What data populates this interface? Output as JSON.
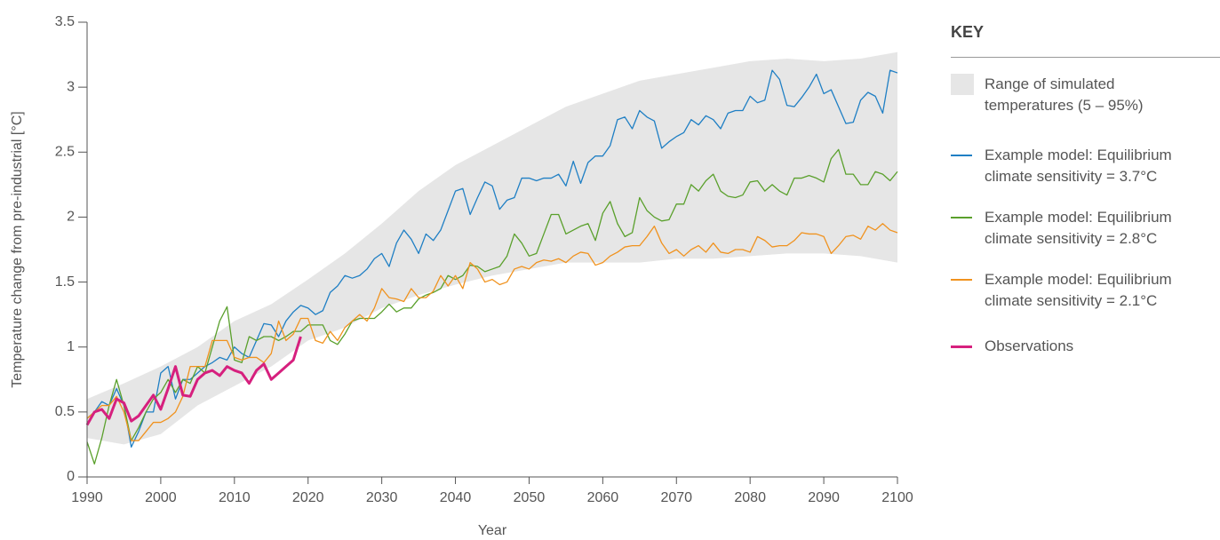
{
  "chart_data": {
    "type": "line",
    "x_label": "Year",
    "y_label": "Temperature change from pre-industrial [°C]",
    "legend_title": "KEY",
    "legend": "right",
    "xlim": [
      1990,
      2100
    ],
    "xticks": [
      1990,
      2000,
      2010,
      2020,
      2030,
      2040,
      2050,
      2060,
      2070,
      2080,
      2090,
      2100
    ],
    "ylim": [
      0,
      3.5
    ],
    "yticks": [
      0,
      0.5,
      1,
      1.5,
      2,
      2.5,
      3,
      3.5
    ],
    "grid": false,
    "x": [
      1990,
      1991,
      1992,
      1993,
      1994,
      1995,
      1996,
      1997,
      1998,
      1999,
      2000,
      2001,
      2002,
      2003,
      2004,
      2005,
      2006,
      2007,
      2008,
      2009,
      2010,
      2011,
      2012,
      2013,
      2014,
      2015,
      2016,
      2017,
      2018,
      2019,
      2020,
      2021,
      2022,
      2023,
      2024,
      2025,
      2026,
      2027,
      2028,
      2029,
      2030,
      2031,
      2032,
      2033,
      2034,
      2035,
      2036,
      2037,
      2038,
      2039,
      2040,
      2041,
      2042,
      2043,
      2044,
      2045,
      2046,
      2047,
      2048,
      2049,
      2050,
      2051,
      2052,
      2053,
      2054,
      2055,
      2056,
      2057,
      2058,
      2059,
      2060,
      2061,
      2062,
      2063,
      2064,
      2065,
      2066,
      2067,
      2068,
      2069,
      2070,
      2071,
      2072,
      2073,
      2074,
      2075,
      2076,
      2077,
      2078,
      2079,
      2080,
      2081,
      2082,
      2083,
      2084,
      2085,
      2086,
      2087,
      2088,
      2089,
      2090,
      2091,
      2092,
      2093,
      2094,
      2095,
      2096,
      2097,
      2098,
      2099,
      2100
    ],
    "series": [
      {
        "name": "Range of simulated temperatures (5 – 95%)",
        "type": "band",
        "color": "#e6e6e6",
        "x": [
          1990,
          1995,
          2000,
          2005,
          2010,
          2015,
          2020,
          2025,
          2030,
          2035,
          2040,
          2045,
          2050,
          2055,
          2060,
          2065,
          2070,
          2075,
          2080,
          2085,
          2090,
          2095,
          2100
        ],
        "low": [
          0.3,
          0.25,
          0.33,
          0.55,
          0.7,
          0.85,
          1.05,
          1.15,
          1.3,
          1.4,
          1.48,
          1.55,
          1.6,
          1.65,
          1.65,
          1.65,
          1.68,
          1.68,
          1.7,
          1.72,
          1.72,
          1.7,
          1.65
        ],
        "high": [
          0.6,
          0.72,
          0.85,
          1.0,
          1.2,
          1.33,
          1.52,
          1.72,
          1.95,
          2.2,
          2.4,
          2.55,
          2.7,
          2.85,
          2.95,
          3.05,
          3.1,
          3.15,
          3.2,
          3.22,
          3.2,
          3.22,
          3.27
        ]
      },
      {
        "name": "Example model: Equilibrium climate sensitivity = 3.7°C",
        "color": "#1f7fc4",
        "width": 1.3,
        "values": [
          0.45,
          0.5,
          0.58,
          0.55,
          0.68,
          0.55,
          0.23,
          0.35,
          0.5,
          0.5,
          0.8,
          0.85,
          0.6,
          0.75,
          0.75,
          0.8,
          0.85,
          0.88,
          0.92,
          0.9,
          1.0,
          0.95,
          0.92,
          1.05,
          1.18,
          1.17,
          1.08,
          1.2,
          1.27,
          1.32,
          1.3,
          1.25,
          1.28,
          1.42,
          1.47,
          1.55,
          1.53,
          1.55,
          1.6,
          1.68,
          1.72,
          1.62,
          1.8,
          1.9,
          1.83,
          1.72,
          1.87,
          1.82,
          1.9,
          2.05,
          2.2,
          2.22,
          2.02,
          2.15,
          2.27,
          2.24,
          2.06,
          2.13,
          2.15,
          2.3,
          2.3,
          2.28,
          2.3,
          2.3,
          2.33,
          2.24,
          2.43,
          2.26,
          2.42,
          2.47,
          2.47,
          2.55,
          2.75,
          2.77,
          2.68,
          2.82,
          2.77,
          2.74,
          2.53,
          2.58,
          2.62,
          2.65,
          2.75,
          2.71,
          2.78,
          2.75,
          2.68,
          2.8,
          2.82,
          2.82,
          2.93,
          2.88,
          2.9,
          3.13,
          3.06,
          2.86,
          2.85,
          2.92,
          3.0,
          3.1,
          2.95,
          2.98,
          2.85,
          2.72,
          2.73,
          2.9,
          2.96,
          2.93,
          2.8,
          3.13,
          3.11
        ]
      },
      {
        "name": "Example model: Equilibrium climate sensitivity = 2.8°C",
        "color": "#5aa02c",
        "width": 1.3,
        "values": [
          0.27,
          0.1,
          0.3,
          0.55,
          0.75,
          0.55,
          0.28,
          0.38,
          0.5,
          0.6,
          0.65,
          0.75,
          0.65,
          0.75,
          0.72,
          0.85,
          0.8,
          1.0,
          1.2,
          1.31,
          0.9,
          0.88,
          1.08,
          1.05,
          1.08,
          1.08,
          1.05,
          1.08,
          1.12,
          1.12,
          1.17,
          1.17,
          1.17,
          1.05,
          1.02,
          1.1,
          1.2,
          1.22,
          1.22,
          1.22,
          1.27,
          1.33,
          1.27,
          1.3,
          1.3,
          1.37,
          1.4,
          1.42,
          1.45,
          1.55,
          1.52,
          1.55,
          1.63,
          1.62,
          1.58,
          1.6,
          1.62,
          1.7,
          1.87,
          1.8,
          1.7,
          1.72,
          1.87,
          2.02,
          2.02,
          1.87,
          1.9,
          1.93,
          1.95,
          1.82,
          2.03,
          2.12,
          1.95,
          1.85,
          1.88,
          2.15,
          2.05,
          2.0,
          1.97,
          1.98,
          2.1,
          2.1,
          2.25,
          2.2,
          2.28,
          2.33,
          2.2,
          2.16,
          2.15,
          2.17,
          2.27,
          2.28,
          2.2,
          2.25,
          2.2,
          2.17,
          2.3,
          2.3,
          2.32,
          2.3,
          2.27,
          2.45,
          2.52,
          2.33,
          2.33,
          2.25,
          2.25,
          2.35,
          2.33,
          2.28,
          2.35
        ]
      },
      {
        "name": "Example model: Equilibrium climate sensitivity = 2.1°C",
        "color": "#f0921e",
        "width": 1.3,
        "values": [
          0.45,
          0.5,
          0.55,
          0.55,
          0.62,
          0.5,
          0.28,
          0.28,
          0.35,
          0.42,
          0.42,
          0.45,
          0.5,
          0.62,
          0.85,
          0.85,
          0.85,
          1.05,
          1.05,
          1.05,
          0.92,
          0.9,
          0.92,
          0.92,
          0.88,
          0.95,
          1.2,
          1.05,
          1.1,
          1.22,
          1.22,
          1.05,
          1.03,
          1.12,
          1.05,
          1.15,
          1.2,
          1.25,
          1.2,
          1.3,
          1.45,
          1.38,
          1.37,
          1.35,
          1.45,
          1.38,
          1.38,
          1.43,
          1.55,
          1.47,
          1.55,
          1.45,
          1.65,
          1.6,
          1.5,
          1.52,
          1.48,
          1.5,
          1.6,
          1.62,
          1.6,
          1.65,
          1.67,
          1.66,
          1.68,
          1.65,
          1.7,
          1.73,
          1.72,
          1.63,
          1.65,
          1.7,
          1.73,
          1.77,
          1.78,
          1.78,
          1.85,
          1.93,
          1.8,
          1.72,
          1.75,
          1.7,
          1.75,
          1.78,
          1.73,
          1.8,
          1.73,
          1.72,
          1.75,
          1.75,
          1.73,
          1.85,
          1.82,
          1.77,
          1.78,
          1.78,
          1.82,
          1.88,
          1.87,
          1.87,
          1.85,
          1.72,
          1.78,
          1.85,
          1.86,
          1.83,
          1.93,
          1.9,
          1.95,
          1.9,
          1.88
        ]
      },
      {
        "name": "Observations",
        "color": "#d6207e",
        "width": 3,
        "x": [
          1990,
          1991,
          1992,
          1993,
          1994,
          1995,
          1996,
          1997,
          1998,
          1999,
          2000,
          2001,
          2002,
          2003,
          2004,
          2005,
          2006,
          2007,
          2008,
          2009,
          2010,
          2011,
          2012,
          2013,
          2014,
          2015,
          2016,
          2017,
          2018,
          2019
        ],
        "values": [
          0.4,
          0.5,
          0.52,
          0.45,
          0.6,
          0.57,
          0.43,
          0.47,
          0.55,
          0.63,
          0.52,
          0.68,
          0.85,
          0.63,
          0.62,
          0.75,
          0.8,
          0.82,
          0.78,
          0.85,
          0.82,
          0.8,
          0.72,
          0.82,
          0.87,
          0.75,
          0.8,
          0.85,
          0.9,
          1.08
        ]
      }
    ]
  }
}
